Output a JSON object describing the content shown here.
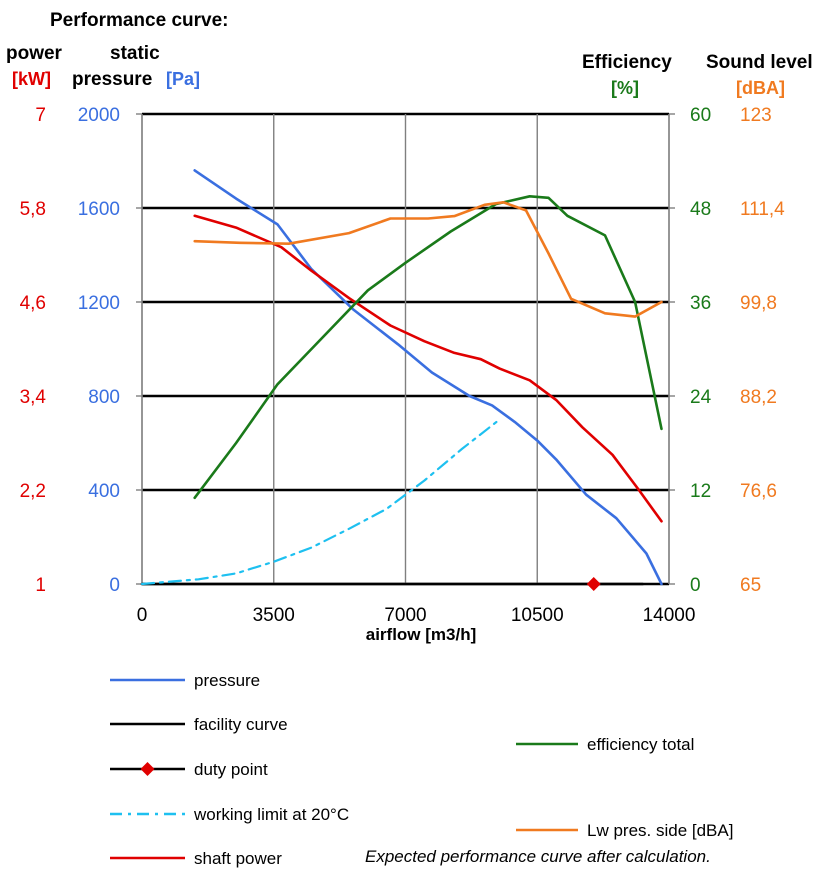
{
  "chart_title": "Performance curve:",
  "axes": {
    "power": {
      "label": "power",
      "unit": "[kW]",
      "ticks": [
        "7",
        "5,8",
        "4,6",
        "3,4",
        "2,2",
        "1"
      ],
      "color": "#e00000"
    },
    "pressure": {
      "label_line1": "static",
      "label_line2": "pressure",
      "unit": "[Pa]",
      "ticks": [
        "2000",
        "1600",
        "1200",
        "800",
        "400",
        "0"
      ],
      "color": "#3a6fe0"
    },
    "efficiency": {
      "label": "Efficiency",
      "unit": "[%]",
      "ticks": [
        "60",
        "48",
        "36",
        "24",
        "12",
        "0"
      ],
      "color": "#1a7a1a"
    },
    "sound": {
      "label": "Sound level",
      "unit": "[dBA]",
      "ticks": [
        "123",
        "111,4",
        "99,8",
        "88,2",
        "76,6",
        "65"
      ],
      "color": "#f07a20"
    },
    "x": {
      "label": "airflow [m3/h]",
      "ticks": [
        "0",
        "3500",
        "7000",
        "10500",
        "14000"
      ]
    }
  },
  "chart_data": {
    "type": "line",
    "xlabel": "airflow [m3/h]",
    "xlim": [
      0,
      14000
    ],
    "grid": true,
    "y_axes": {
      "pressure": {
        "ylim": [
          0,
          2000
        ],
        "unit": "Pa"
      },
      "power": {
        "ylim": [
          1,
          7
        ],
        "unit": "kW"
      },
      "efficiency": {
        "ylim": [
          0,
          60
        ],
        "unit": "%"
      },
      "sound": {
        "ylim": [
          65,
          123
        ],
        "unit": "dBA"
      }
    },
    "series": [
      {
        "name": "pressure",
        "axis": "pressure",
        "color": "#3a6fe0",
        "style": "solid",
        "x": [
          1400,
          2500,
          3600,
          4500,
          5600,
          6800,
          7700,
          8700,
          9300,
          9900,
          10500,
          11000,
          11800,
          12600,
          13400,
          13800
        ],
        "y": [
          1760,
          1640,
          1530,
          1340,
          1170,
          1020,
          900,
          800,
          760,
          690,
          610,
          530,
          380,
          280,
          130,
          0
        ]
      },
      {
        "name": "shaft power",
        "axis": "power",
        "color": "#e00000",
        "style": "solid",
        "x": [
          1400,
          2500,
          3700,
          4500,
          5500,
          6600,
          7500,
          8300,
          9000,
          9500,
          10300,
          11000,
          11700,
          12500,
          13200,
          13800
        ],
        "y": [
          5.7,
          5.55,
          5.3,
          5.0,
          4.65,
          4.3,
          4.1,
          3.95,
          3.87,
          3.75,
          3.6,
          3.35,
          3.0,
          2.65,
          2.2,
          1.8
        ]
      },
      {
        "name": "efficiency total",
        "axis": "efficiency",
        "color": "#1a7a1a",
        "style": "solid",
        "x": [
          1400,
          2500,
          3600,
          4600,
          6000,
          7000,
          8200,
          9400,
          10300,
          10800,
          11300,
          12300,
          13100,
          13800
        ],
        "y": [
          11,
          18,
          25.5,
          30.5,
          37.5,
          41,
          45,
          48.5,
          49.5,
          49.3,
          47,
          44.5,
          36,
          19.8
        ]
      },
      {
        "name": "Lw pres. side [dBA]",
        "axis": "sound",
        "color": "#f07a20",
        "style": "solid",
        "x": [
          1400,
          2600,
          3900,
          5500,
          6600,
          7600,
          8300,
          9100,
          9600,
          10200,
          10800,
          11400,
          12300,
          13100,
          13800
        ],
        "y": [
          107.3,
          107.1,
          107.0,
          108.3,
          110.1,
          110.1,
          110.4,
          111.8,
          112.1,
          111.1,
          105.8,
          100.2,
          98.4,
          98.0,
          99.8
        ]
      },
      {
        "name": "working limit at 20°C",
        "axis": "pressure",
        "color": "#1ec0f0",
        "style": "dashdot",
        "x": [
          0,
          1500,
          2500,
          3500,
          4500,
          5500,
          6500,
          7500,
          8500,
          9500
        ],
        "y": [
          0,
          20,
          45,
          95,
          155,
          235,
          320,
          440,
          575,
          700
        ]
      },
      {
        "name": "facility curve",
        "axis": "pressure",
        "color": "#000000",
        "style": "solid",
        "x": [
          0,
          13300
        ],
        "y": [
          0,
          0
        ]
      },
      {
        "name": "duty point",
        "axis": "pressure",
        "color": "#e00000",
        "style": "marker",
        "x": [
          12000
        ],
        "y": [
          0
        ]
      }
    ]
  },
  "legend": [
    {
      "label": "pressure",
      "color": "#3a6fe0",
      "style": "solid"
    },
    {
      "label": "facility curve",
      "color": "#000000",
      "style": "solid"
    },
    {
      "label": "duty point",
      "color": "#000000",
      "style": "marker"
    },
    {
      "label": "working limit at 20°C",
      "color": "#1ec0f0",
      "style": "dashdot"
    },
    {
      "label": "shaft power",
      "color": "#e00000",
      "style": "solid"
    },
    {
      "label": "efficiency total",
      "color": "#1a7a1a",
      "style": "solid"
    },
    {
      "label": "Lw pres. side [dBA]",
      "color": "#f07a20",
      "style": "solid"
    }
  ],
  "note": "Expected performance curve after calculation."
}
